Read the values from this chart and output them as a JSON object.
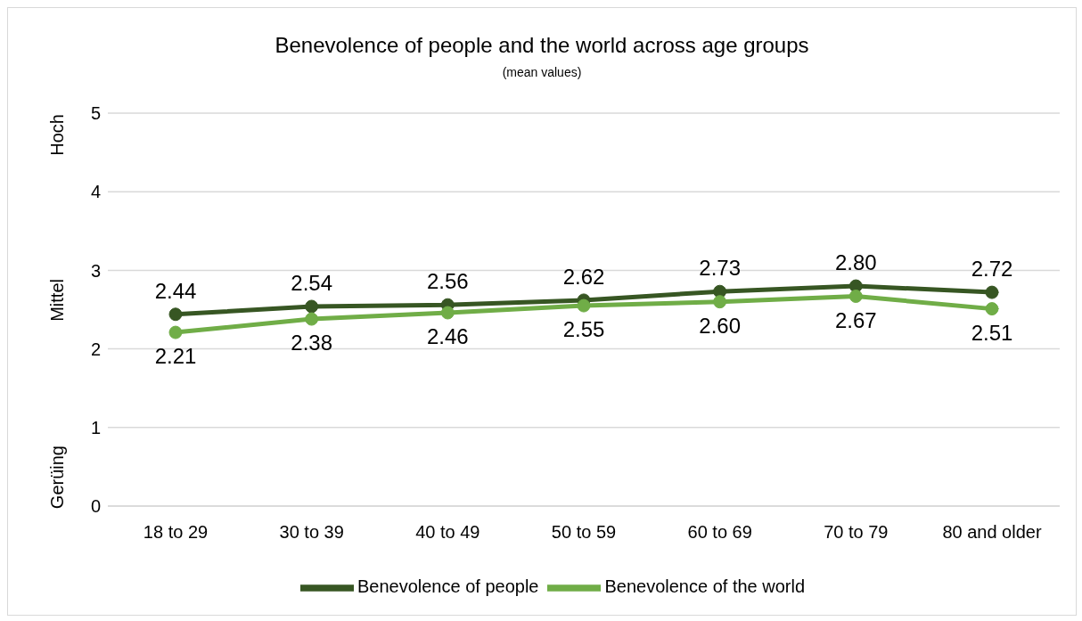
{
  "chart_data": {
    "type": "line",
    "title": "Benevolence of people and the world across age groups",
    "subtitle": "(mean values)",
    "categories": [
      "18 to 29",
      "30 to 39",
      "40 to 49",
      "50 to 59",
      "60 to 69",
      "70 to 79",
      "80 and older"
    ],
    "series": [
      {
        "name": "Benevolence of people",
        "color": "#375623",
        "values": [
          2.44,
          2.54,
          2.56,
          2.62,
          2.73,
          2.8,
          2.72
        ],
        "value_labels": [
          "2.44",
          "2.54",
          "2.56",
          "2.62",
          "2.73",
          "2.80",
          "2.72"
        ]
      },
      {
        "name": "Benevolence of the world",
        "color": "#70ad47",
        "values": [
          2.21,
          2.38,
          2.46,
          2.55,
          2.6,
          2.67,
          2.51
        ],
        "value_labels": [
          "2.21",
          "2.38",
          "2.46",
          "2.55",
          "2.60",
          "2.67",
          "2.51"
        ]
      }
    ],
    "ylim": [
      0,
      5
    ],
    "yticks": [
      0,
      1,
      2,
      3,
      4,
      5
    ],
    "grid": "y",
    "legend": "bottom",
    "marker": "circle",
    "line_style": "solid",
    "annotations": [
      "Gerüing",
      "Mittel",
      "Hoch"
    ]
  }
}
